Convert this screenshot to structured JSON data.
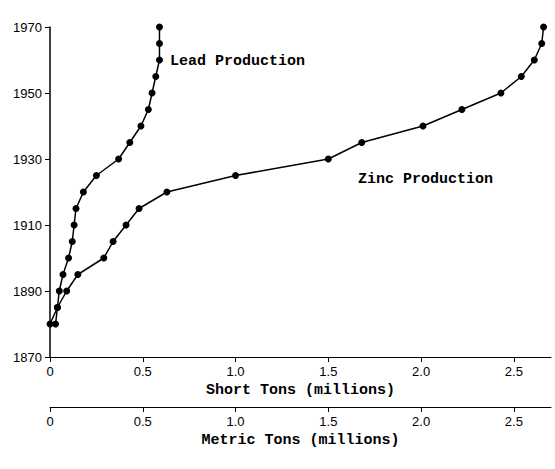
{
  "chart_data": {
    "type": "line",
    "x_label": "Short Tons (millions)",
    "x2_label": "Metric Tons (millions)",
    "xlim": [
      0,
      2.7
    ],
    "xticks": [
      0,
      0.5,
      {
        "value": 1,
        "label": "1.0"
      },
      1.5,
      {
        "value": 2,
        "label": "2.0"
      },
      2.5
    ],
    "x2lim": [
      0,
      2.7
    ],
    "x2ticks": [
      0,
      0.5,
      {
        "value": 1,
        "label": "1.0"
      },
      1.5,
      {
        "value": 2,
        "label": "2.0"
      },
      2.5
    ],
    "ylim": [
      1870,
      1970
    ],
    "yticks": [
      1870,
      1890,
      1910,
      1930,
      1950,
      1970
    ],
    "grid": false,
    "marker": "circle",
    "line_style": "solid",
    "series": [
      {
        "name": "Lead Production",
        "color": "#000000",
        "x": [
          0,
          0.04,
          0.05,
          0.07,
          0.1,
          0.12,
          0.13,
          0.14,
          0.18,
          0.25,
          0.37,
          0.43,
          0.49,
          0.53,
          0.55,
          0.57,
          0.59,
          0.59,
          0.59
        ],
        "values": [
          1880,
          1885,
          1890,
          1895,
          1900,
          1905,
          1910,
          1915,
          1920,
          1925,
          1930,
          1935,
          1940,
          1945,
          1950,
          1955,
          1960,
          1965,
          1970
        ]
      },
      {
        "name": "Zinc Production",
        "color": "#000000",
        "x": [
          0.03,
          0.04,
          0.09,
          0.15,
          0.29,
          0.34,
          0.41,
          0.48,
          0.63,
          1.0,
          1.5,
          1.68,
          2.01,
          2.22,
          2.43,
          2.54,
          2.61,
          2.65,
          2.66
        ],
        "values": [
          1880,
          1885,
          1890,
          1895,
          1900,
          1905,
          1910,
          1915,
          1920,
          1925,
          1930,
          1935,
          1940,
          1945,
          1950,
          1955,
          1960,
          1965,
          1970
        ]
      }
    ]
  }
}
